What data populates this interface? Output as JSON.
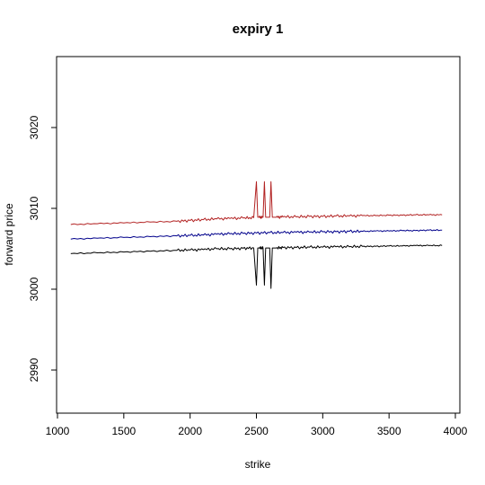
{
  "chart_data": {
    "type": "line",
    "title": "expiry 1",
    "xlabel": "strike",
    "ylabel": "forward price",
    "xlim": [
      1000,
      4000
    ],
    "ylim": [
      2985,
      3025
    ],
    "x_ticks": [
      1000,
      1500,
      2000,
      2500,
      3000,
      3500,
      4000
    ],
    "y_ticks": [
      2990,
      3000,
      3010,
      3020
    ],
    "grid": false,
    "legend": "none",
    "series": [
      {
        "color": "#b22222",
        "x": [
          1100,
          1300,
          1500,
          1700,
          1900,
          2000,
          2100,
          2200,
          2300,
          2400,
          2480,
          2500,
          2510,
          2520,
          2550,
          2560,
          2570,
          2600,
          2610,
          2620,
          2650,
          2700,
          2800,
          2900,
          3000,
          3100,
          3200,
          3300,
          3400,
          3500,
          3600,
          3700,
          3800,
          3900
        ],
        "y": [
          3008.0,
          3008.1,
          3008.2,
          3008.3,
          3008.4,
          3008.5,
          3008.6,
          3008.7,
          3008.75,
          3008.8,
          3008.85,
          3013.3,
          3008.9,
          3008.9,
          3008.9,
          3013.3,
          3008.9,
          3008.9,
          3013.3,
          3008.9,
          3008.9,
          3008.95,
          3008.95,
          3009.0,
          3009.0,
          3009.05,
          3009.05,
          3009.1,
          3009.1,
          3009.15,
          3009.15,
          3009.2,
          3009.2,
          3009.2
        ]
      },
      {
        "color": "#00008b",
        "x": [
          1100,
          1300,
          1500,
          1700,
          1900,
          2000,
          2100,
          2200,
          2300,
          2400,
          2500,
          2600,
          2700,
          2800,
          2900,
          3000,
          3100,
          3200,
          3300,
          3400,
          3500,
          3600,
          3700,
          3800,
          3900
        ],
        "y": [
          3006.2,
          3006.3,
          3006.4,
          3006.5,
          3006.6,
          3006.65,
          3006.7,
          3006.8,
          3006.85,
          3006.9,
          3006.95,
          3007.0,
          3007.0,
          3007.05,
          3007.05,
          3007.1,
          3007.1,
          3007.15,
          3007.15,
          3007.2,
          3007.2,
          3007.25,
          3007.25,
          3007.3,
          3007.3
        ]
      },
      {
        "color": "#000000",
        "x": [
          1100,
          1300,
          1500,
          1700,
          1900,
          2000,
          2100,
          2200,
          2300,
          2400,
          2480,
          2500,
          2510,
          2520,
          2550,
          2560,
          2570,
          2600,
          2610,
          2620,
          2650,
          2700,
          2800,
          2900,
          3000,
          3100,
          3200,
          3300,
          3400,
          3500,
          3600,
          3700,
          3800,
          3900
        ],
        "y": [
          3004.4,
          3004.5,
          3004.6,
          3004.7,
          3004.8,
          3004.85,
          3004.9,
          3005.0,
          3005.0,
          3005.05,
          3005.1,
          3000.5,
          3005.1,
          3005.1,
          3005.1,
          3000.5,
          3005.1,
          3005.1,
          3000.1,
          3005.1,
          3005.1,
          3005.15,
          3005.15,
          3005.2,
          3005.2,
          3005.25,
          3005.25,
          3005.3,
          3005.3,
          3005.35,
          3005.35,
          3005.4,
          3005.4,
          3005.4
        ]
      }
    ]
  }
}
